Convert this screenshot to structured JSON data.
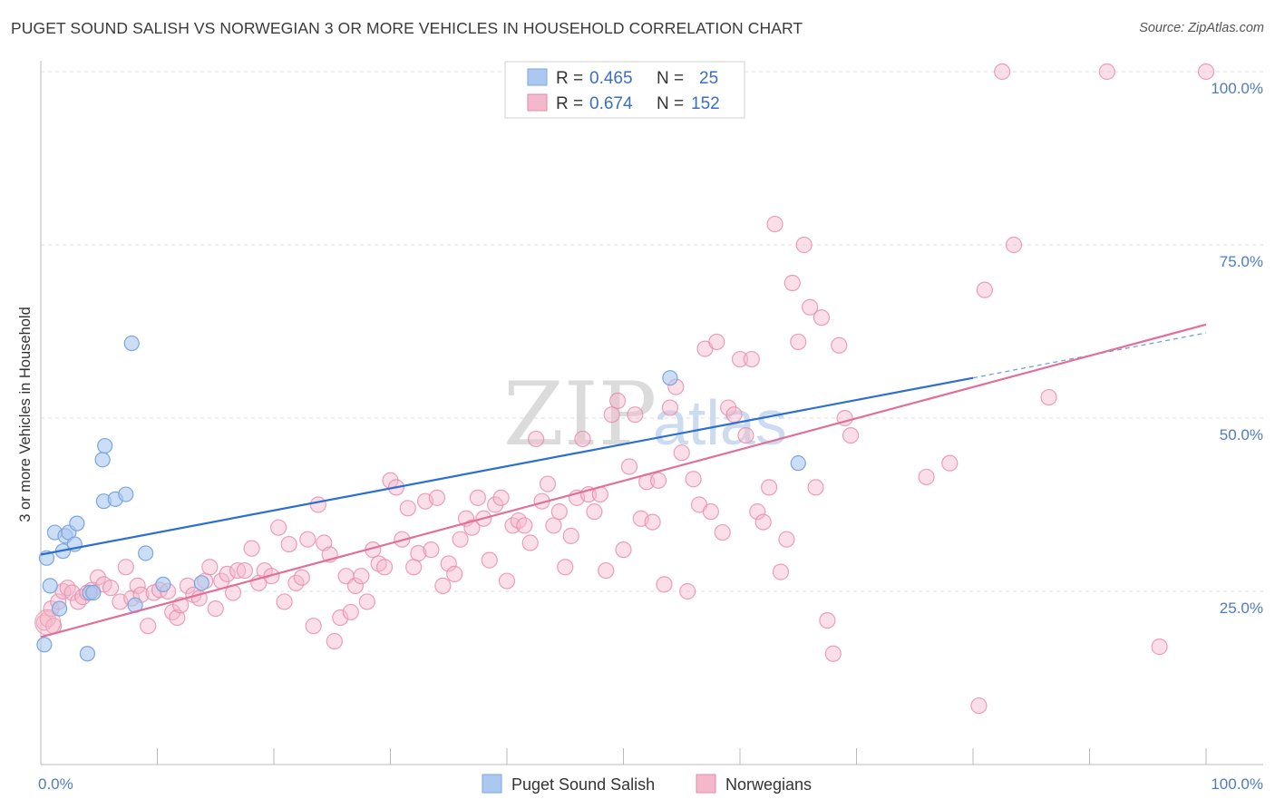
{
  "title": "PUGET SOUND SALISH VS NORWEGIAN 3 OR MORE VEHICLES IN HOUSEHOLD CORRELATION CHART",
  "source": "Source: ZipAtlas.com",
  "colors": {
    "blue_fill": "#aac8f0",
    "blue_stroke": "#7aa6e0",
    "blue_line": "#2a6fd1",
    "pink_fill": "#f4b8cb",
    "pink_stroke": "#e889a8",
    "pink_line": "#e0709a",
    "axis_label": "#4f7bc4",
    "grid": "#dddddd"
  },
  "legend": {
    "rows": [
      {
        "r_label": "R = ",
        "r_value": "0.465",
        "n_label": "N = ",
        "n_value": "25",
        "color": "blue"
      },
      {
        "r_label": "R = ",
        "r_value": "0.674",
        "n_label": "N = ",
        "n_value": "152",
        "color": "pink"
      }
    ]
  },
  "bottom_legend": [
    "Puget Sound Salish",
    "Norwegians"
  ],
  "watermark": {
    "zip": "ZIP",
    "atlas": "atlas"
  },
  "chart_data": {
    "type": "scatter",
    "title": "PUGET SOUND SALISH VS NORWEGIAN 3 OR MORE VEHICLES IN HOUSEHOLD CORRELATION CHART",
    "xlabel": "",
    "ylabel": "3 or more Vehicles in Household",
    "xlim": [
      0,
      100
    ],
    "ylim": [
      0,
      100
    ],
    "x_ticks": [
      "0.0%",
      "100.0%"
    ],
    "y_ticks": [
      {
        "value": 25,
        "label": "25.0%"
      },
      {
        "value": 50,
        "label": "50.0%"
      },
      {
        "value": 75,
        "label": "75.0%"
      },
      {
        "value": 100,
        "label": "100.0%"
      }
    ],
    "grid": true,
    "legend_position": "top-center",
    "series": [
      {
        "name": "Puget Sound Salish",
        "color": "blue",
        "trend": {
          "x0": 0,
          "y0": 30.3,
          "x1": 80,
          "y1": 55.8,
          "dashed_to_x": 100,
          "dashed_to_y": 62.3
        },
        "points": [
          [
            0.3,
            17.3
          ],
          [
            0.5,
            29.8
          ],
          [
            0.8,
            25.8
          ],
          [
            1.2,
            33.5
          ],
          [
            1.6,
            22.5
          ],
          [
            1.9,
            30.8
          ],
          [
            2.1,
            33.0
          ],
          [
            2.4,
            33.5
          ],
          [
            2.9,
            31.8
          ],
          [
            3.1,
            34.8
          ],
          [
            4.0,
            16.0
          ],
          [
            4.2,
            24.8
          ],
          [
            4.5,
            24.8
          ],
          [
            5.3,
            44.0
          ],
          [
            5.5,
            46.0
          ],
          [
            5.4,
            38.0
          ],
          [
            6.4,
            38.3
          ],
          [
            7.3,
            39.0
          ],
          [
            7.8,
            60.8
          ],
          [
            8.1,
            23.0
          ],
          [
            9.0,
            30.5
          ],
          [
            10.5,
            26.0
          ],
          [
            13.8,
            26.2
          ],
          [
            54.0,
            55.8
          ],
          [
            65.0,
            43.5
          ]
        ]
      },
      {
        "name": "Norwegians",
        "color": "pink",
        "trend": {
          "x0": 0,
          "y0": 18.4,
          "x1": 100,
          "y1": 63.5
        },
        "points": [
          [
            0.3,
            20.5
          ],
          [
            0.6,
            21.0
          ],
          [
            0.9,
            22.5
          ],
          [
            1.1,
            20.0
          ],
          [
            1.5,
            23.5
          ],
          [
            1.9,
            25.0
          ],
          [
            2.3,
            25.5
          ],
          [
            2.7,
            24.8
          ],
          [
            3.2,
            23.5
          ],
          [
            3.6,
            24.2
          ],
          [
            4.0,
            24.8
          ],
          [
            4.4,
            25.2
          ],
          [
            4.9,
            27.0
          ],
          [
            5.4,
            26.0
          ],
          [
            6.0,
            25.5
          ],
          [
            6.8,
            23.5
          ],
          [
            7.3,
            28.5
          ],
          [
            7.8,
            24.0
          ],
          [
            8.3,
            25.8
          ],
          [
            8.6,
            24.5
          ],
          [
            9.2,
            20.0
          ],
          [
            9.7,
            24.8
          ],
          [
            10.2,
            25.2
          ],
          [
            10.9,
            25.0
          ],
          [
            11.3,
            22.0
          ],
          [
            11.7,
            21.2
          ],
          [
            12.0,
            23.0
          ],
          [
            12.6,
            25.8
          ],
          [
            13.1,
            24.5
          ],
          [
            13.6,
            24.0
          ],
          [
            14.1,
            26.5
          ],
          [
            14.5,
            28.5
          ],
          [
            15.0,
            22.5
          ],
          [
            15.5,
            26.5
          ],
          [
            16.0,
            27.5
          ],
          [
            16.5,
            24.8
          ],
          [
            16.9,
            28.0
          ],
          [
            17.5,
            28.0
          ],
          [
            18.1,
            31.2
          ],
          [
            18.7,
            26.2
          ],
          [
            19.2,
            28.0
          ],
          [
            19.8,
            27.2
          ],
          [
            20.4,
            34.2
          ],
          [
            20.9,
            23.5
          ],
          [
            21.3,
            31.8
          ],
          [
            21.9,
            26.2
          ],
          [
            22.4,
            27.0
          ],
          [
            22.9,
            32.5
          ],
          [
            23.4,
            20.0
          ],
          [
            23.8,
            37.5
          ],
          [
            24.3,
            32.0
          ],
          [
            24.8,
            30.3
          ],
          [
            25.2,
            17.8
          ],
          [
            25.7,
            21.2
          ],
          [
            26.2,
            27.2
          ],
          [
            26.6,
            22.0
          ],
          [
            27.0,
            25.8
          ],
          [
            27.5,
            27.2
          ],
          [
            28.0,
            23.5
          ],
          [
            28.5,
            31.0
          ],
          [
            29.0,
            29.0
          ],
          [
            29.5,
            28.5
          ],
          [
            30.0,
            41.0
          ],
          [
            30.5,
            40.0
          ],
          [
            31.0,
            32.5
          ],
          [
            31.5,
            37.0
          ],
          [
            32.0,
            28.5
          ],
          [
            32.4,
            30.5
          ],
          [
            33.0,
            38.0
          ],
          [
            33.5,
            31.0
          ],
          [
            34.0,
            38.5
          ],
          [
            34.5,
            25.8
          ],
          [
            35.0,
            29.0
          ],
          [
            35.5,
            27.5
          ],
          [
            36.0,
            32.5
          ],
          [
            36.5,
            35.5
          ],
          [
            37.0,
            34.2
          ],
          [
            37.5,
            38.5
          ],
          [
            38.0,
            35.5
          ],
          [
            38.5,
            29.5
          ],
          [
            39.0,
            37.5
          ],
          [
            39.5,
            38.5
          ],
          [
            40.0,
            26.5
          ],
          [
            40.5,
            34.5
          ],
          [
            41.0,
            35.2
          ],
          [
            41.5,
            34.5
          ],
          [
            42.0,
            32.0
          ],
          [
            42.5,
            47.0
          ],
          [
            43.0,
            38.0
          ],
          [
            43.5,
            40.5
          ],
          [
            44.0,
            34.5
          ],
          [
            44.5,
            36.5
          ],
          [
            45.0,
            28.5
          ],
          [
            45.5,
            33.0
          ],
          [
            46.0,
            38.5
          ],
          [
            46.5,
            47.0
          ],
          [
            47.0,
            39.0
          ],
          [
            47.5,
            36.5
          ],
          [
            48.0,
            39.0
          ],
          [
            48.5,
            28.0
          ],
          [
            49.0,
            50.5
          ],
          [
            49.5,
            52.5
          ],
          [
            50.0,
            31.0
          ],
          [
            50.5,
            43.0
          ],
          [
            51.0,
            50.5
          ],
          [
            51.5,
            35.5
          ],
          [
            52.0,
            40.8
          ],
          [
            52.5,
            35.0
          ],
          [
            53.0,
            41.0
          ],
          [
            53.5,
            26.0
          ],
          [
            54.0,
            51.5
          ],
          [
            54.5,
            54.5
          ],
          [
            55.0,
            45.0
          ],
          [
            55.5,
            25.0
          ],
          [
            56.0,
            41.2
          ],
          [
            56.5,
            37.5
          ],
          [
            57.0,
            60.0
          ],
          [
            57.5,
            36.5
          ],
          [
            58.0,
            61.0
          ],
          [
            58.5,
            33.5
          ],
          [
            59.0,
            51.5
          ],
          [
            59.5,
            50.5
          ],
          [
            60.0,
            58.5
          ],
          [
            60.5,
            47.5
          ],
          [
            61.0,
            58.5
          ],
          [
            61.5,
            36.5
          ],
          [
            62.0,
            35.0
          ],
          [
            62.5,
            40.0
          ],
          [
            63.0,
            78.0
          ],
          [
            63.5,
            27.8
          ],
          [
            64.0,
            32.5
          ],
          [
            64.5,
            69.5
          ],
          [
            65.0,
            61.0
          ],
          [
            65.5,
            75.0
          ],
          [
            66.0,
            66.0
          ],
          [
            66.5,
            40.0
          ],
          [
            67.0,
            64.5
          ],
          [
            67.5,
            20.8
          ],
          [
            68.0,
            16.0
          ],
          [
            68.5,
            60.5
          ],
          [
            69.0,
            50.0
          ],
          [
            69.5,
            47.5
          ],
          [
            76.0,
            41.5
          ],
          [
            78.0,
            43.5
          ],
          [
            80.5,
            8.5
          ],
          [
            81.0,
            68.5
          ],
          [
            82.5,
            100.0
          ],
          [
            83.5,
            75.0
          ],
          [
            86.5,
            53.0
          ],
          [
            91.5,
            100.0
          ],
          [
            96.0,
            17.0
          ],
          [
            100.0,
            100.0
          ]
        ]
      }
    ]
  }
}
